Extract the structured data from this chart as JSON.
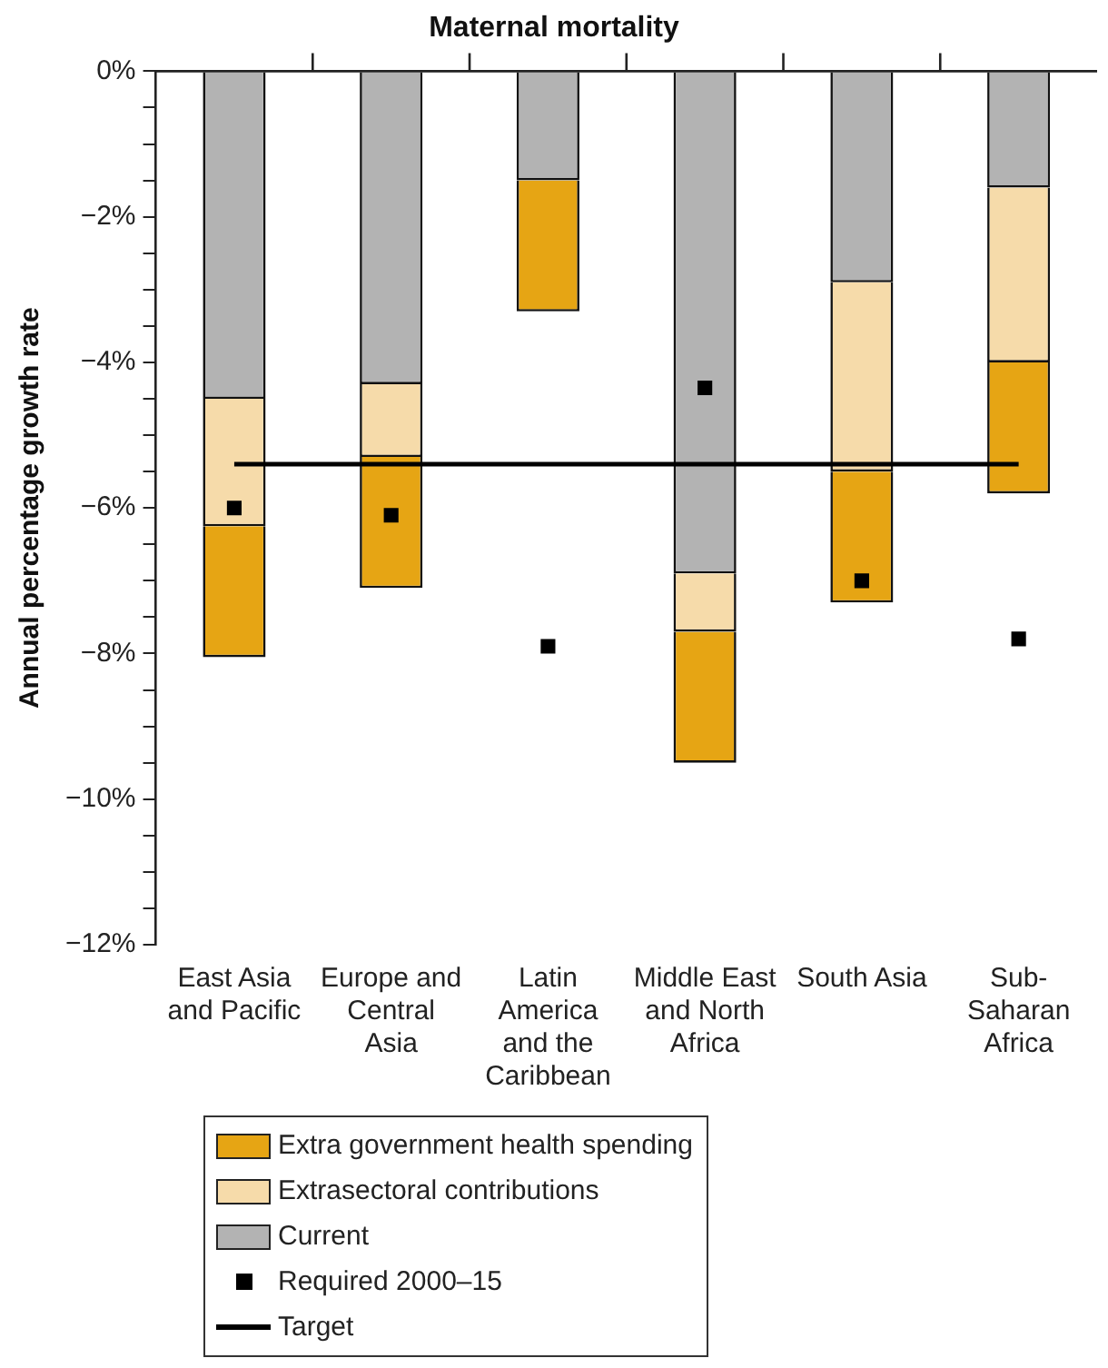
{
  "chart_data": {
    "type": "bar",
    "title": "Maternal mortality",
    "ylabel": "Annual percentage growth rate",
    "categories": [
      "East Asia and Pacific",
      "Europe and Central Asia",
      "Latin America and the Caribbean",
      "Middle East and North Africa",
      "South Asia",
      "Sub-Saharan Africa"
    ],
    "stacked": true,
    "series": [
      {
        "name": "Current",
        "color": "#b3b3b3",
        "values": [
          -4.5,
          -4.3,
          -1.5,
          -6.9,
          -2.9,
          -1.6
        ]
      },
      {
        "name": "Extrasectoral contributions",
        "color": "#f6dbaa",
        "values": [
          -1.75,
          -1.0,
          null,
          -0.8,
          -2.6,
          -2.4
        ]
      },
      {
        "name": "Extra government health spending",
        "color": "#e6a514",
        "values": [
          -1.8,
          -1.8,
          -1.8,
          -1.8,
          -1.8,
          -1.8
        ]
      },
      {
        "name": "Required 2000–15",
        "type": "scatter",
        "color": "#000000",
        "marker": "square",
        "x": [
          "East Asia and Pacific",
          "Europe and Central Asia",
          "Latin America and the Caribbean",
          "Middle East and North Africa",
          "South Asia",
          "Sub-Saharan Africa"
        ],
        "values": [
          -6.0,
          -6.1,
          -7.9,
          -4.35,
          -7.0,
          -7.8
        ]
      }
    ],
    "ref_lines": [
      {
        "axis": "y",
        "value": -5.4,
        "label": "Target",
        "color": "#000000"
      }
    ],
    "ylim": [
      -12,
      0
    ],
    "yticks": [
      {
        "value": -12,
        "label": "−12%"
      },
      {
        "value": -11.5,
        "label": null
      },
      {
        "value": -11,
        "label": null
      },
      {
        "value": -10.5,
        "label": null
      },
      {
        "value": -10,
        "label": "−10%"
      },
      {
        "value": -9.5,
        "label": null
      },
      {
        "value": -9,
        "label": null
      },
      {
        "value": -8.5,
        "label": null
      },
      {
        "value": -8,
        "label": "−8%"
      },
      {
        "value": -7.5,
        "label": null
      },
      {
        "value": -7,
        "label": null
      },
      {
        "value": -6.5,
        "label": null
      },
      {
        "value": -6,
        "label": "−6%"
      },
      {
        "value": -5.5,
        "label": null
      },
      {
        "value": -5,
        "label": null
      },
      {
        "value": -4.5,
        "label": null
      },
      {
        "value": -4,
        "label": "−4%"
      },
      {
        "value": -3.5,
        "label": null
      },
      {
        "value": -3,
        "label": null
      },
      {
        "value": -2.5,
        "label": null
      },
      {
        "value": -2,
        "label": "−2%"
      },
      {
        "value": -1.5,
        "label": null
      },
      {
        "value": -1,
        "label": null
      },
      {
        "value": -0.5,
        "label": null
      },
      {
        "value": 0,
        "label": "0%"
      }
    ],
    "grid": false,
    "legend": "bottom"
  }
}
